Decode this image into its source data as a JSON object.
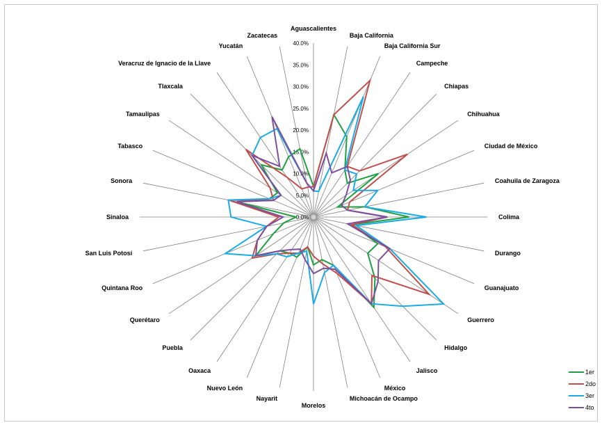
{
  "chart_data": {
    "type": "radar",
    "categories": [
      "Aguascalientes",
      "Baja California",
      "Baja California Sur",
      "Campeche",
      "Chiapas",
      "Chihuahua",
      "Ciudad de México",
      "Coahuila de Zaragoza",
      "Colima",
      "Durango",
      "Guanajuato",
      "Guerrero",
      "Hidalgo",
      "Jalisco",
      "México",
      "Michoacán de Ocampo",
      "Morelos",
      "Nayarit",
      "Nuevo León",
      "Oaxaca",
      "Puebla",
      "Querétaro",
      "Quintana Roo",
      "San Luis Potosí",
      "Sinaloa",
      "Sonora",
      "Tabasco",
      "Tamaulipas",
      "Tlaxcala",
      "Veracruz de Ignacio de la Llave",
      "Yucatán",
      "Zacatecas"
    ],
    "rlim": [
      0,
      40
    ],
    "ticks": [
      "0.0%",
      "5.0%",
      "10.0%",
      "15.0%",
      "20.0%",
      "25.0%",
      "30.0%",
      "35.0%",
      "40.0%"
    ],
    "legend_position": "bottom-right",
    "gridlines": "spokes",
    "series": [
      {
        "name": "1er",
        "color": "#1fa040",
        "values": [
          7,
          24,
          20,
          13,
          11,
          18,
          6,
          12,
          22,
          9,
          16,
          15,
          20,
          25,
          12,
          10,
          11,
          7,
          10,
          10,
          11,
          16,
          10,
          7,
          4,
          18,
          11,
          10,
          17,
          13,
          15,
          16
        ]
      },
      {
        "name": "2do",
        "color": "#c0504d",
        "values": [
          7,
          24,
          34,
          14,
          15,
          26,
          9,
          8,
          17,
          9,
          18,
          32,
          19,
          24,
          14,
          11,
          9,
          7,
          9,
          10,
          12,
          17,
          14,
          11,
          8,
          20,
          10,
          12,
          22,
          11,
          7,
          7
        ]
      },
      {
        "name": "3er",
        "color": "#1aabe6",
        "values": [
          6,
          6,
          30,
          13,
          14,
          11,
          16,
          12,
          26,
          10,
          19,
          36,
          29,
          24,
          12,
          13,
          20,
          8,
          9,
          11,
          12,
          16,
          22,
          11,
          19,
          20,
          11,
          9,
          20,
          22,
          22,
          8
        ]
      },
      {
        "name": "4to",
        "color": "#7b4f9d",
        "values": [
          6,
          15,
          11,
          14,
          12,
          9,
          7,
          8,
          17,
          8,
          19,
          18,
          21,
          24,
          13,
          12,
          13,
          10,
          8,
          9,
          11,
          16,
          14,
          11,
          7,
          18,
          10,
          9,
          20,
          14,
          25,
          8
        ]
      }
    ]
  }
}
